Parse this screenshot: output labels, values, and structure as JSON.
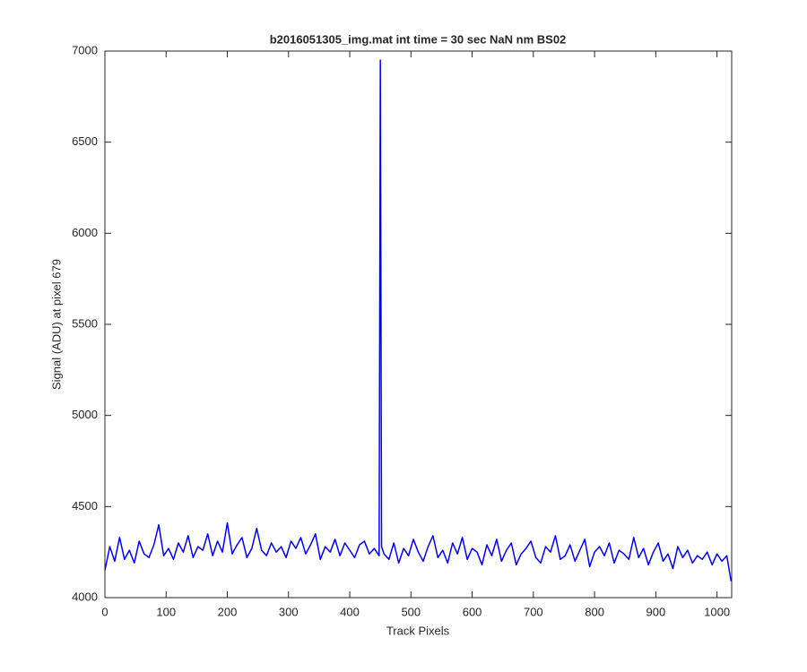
{
  "chart_data": {
    "type": "line",
    "title": "b2016051305_img.mat int time = 30 sec  NaN nm BS02",
    "xlabel": "Track Pixels",
    "ylabel": "Signal (ADU) at pixel 679",
    "color": "#0000ff",
    "xlim": [
      0,
      1024
    ],
    "ylim": [
      4000,
      7000
    ],
    "xticks": [
      0,
      100,
      200,
      300,
      400,
      500,
      600,
      700,
      800,
      900,
      1000
    ],
    "yticks": [
      4000,
      4500,
      5000,
      5500,
      6000,
      6500,
      7000
    ],
    "grid": false,
    "x": [
      0,
      8,
      16,
      24,
      32,
      40,
      48,
      56,
      64,
      72,
      80,
      88,
      96,
      104,
      112,
      120,
      128,
      136,
      144,
      152,
      160,
      168,
      176,
      184,
      192,
      200,
      208,
      216,
      224,
      232,
      240,
      248,
      256,
      264,
      272,
      280,
      288,
      296,
      304,
      312,
      320,
      328,
      336,
      344,
      352,
      360,
      368,
      376,
      384,
      392,
      400,
      408,
      416,
      424,
      432,
      440,
      448,
      450,
      452,
      456,
      464,
      472,
      480,
      488,
      496,
      504,
      512,
      520,
      528,
      536,
      544,
      552,
      560,
      568,
      576,
      584,
      592,
      600,
      608,
      616,
      624,
      632,
      640,
      648,
      656,
      664,
      672,
      680,
      688,
      696,
      704,
      712,
      720,
      728,
      736,
      744,
      752,
      760,
      768,
      776,
      784,
      792,
      800,
      808,
      816,
      824,
      832,
      840,
      848,
      856,
      864,
      872,
      880,
      888,
      896,
      904,
      912,
      920,
      928,
      936,
      944,
      952,
      960,
      968,
      976,
      984,
      992,
      1000,
      1008,
      1016,
      1023
    ],
    "values": [
      4150,
      4280,
      4200,
      4330,
      4210,
      4260,
      4190,
      4310,
      4240,
      4220,
      4290,
      4400,
      4230,
      4270,
      4210,
      4300,
      4250,
      4340,
      4220,
      4280,
      4260,
      4350,
      4230,
      4310,
      4250,
      4410,
      4240,
      4290,
      4330,
      4220,
      4270,
      4380,
      4260,
      4230,
      4300,
      4250,
      4280,
      4220,
      4310,
      4270,
      4330,
      4240,
      4290,
      4350,
      4210,
      4280,
      4250,
      4320,
      4230,
      4300,
      4260,
      4220,
      4290,
      4310,
      4240,
      4270,
      4230,
      6950,
      4280,
      4240,
      4210,
      4300,
      4190,
      4270,
      4230,
      4320,
      4250,
      4200,
      4280,
      4340,
      4220,
      4260,
      4190,
      4300,
      4240,
      4330,
      4210,
      4270,
      4250,
      4180,
      4290,
      4230,
      4320,
      4200,
      4260,
      4300,
      4180,
      4240,
      4270,
      4310,
      4220,
      4190,
      4280,
      4250,
      4340,
      4210,
      4230,
      4290,
      4200,
      4260,
      4320,
      4170,
      4250,
      4280,
      4230,
      4300,
      4190,
      4260,
      4240,
      4210,
      4330,
      4220,
      4270,
      4180,
      4250,
      4300,
      4200,
      4240,
      4160,
      4280,
      4220,
      4260,
      4190,
      4230,
      4210,
      4250,
      4180,
      4240,
      4200,
      4230,
      4090
    ]
  }
}
